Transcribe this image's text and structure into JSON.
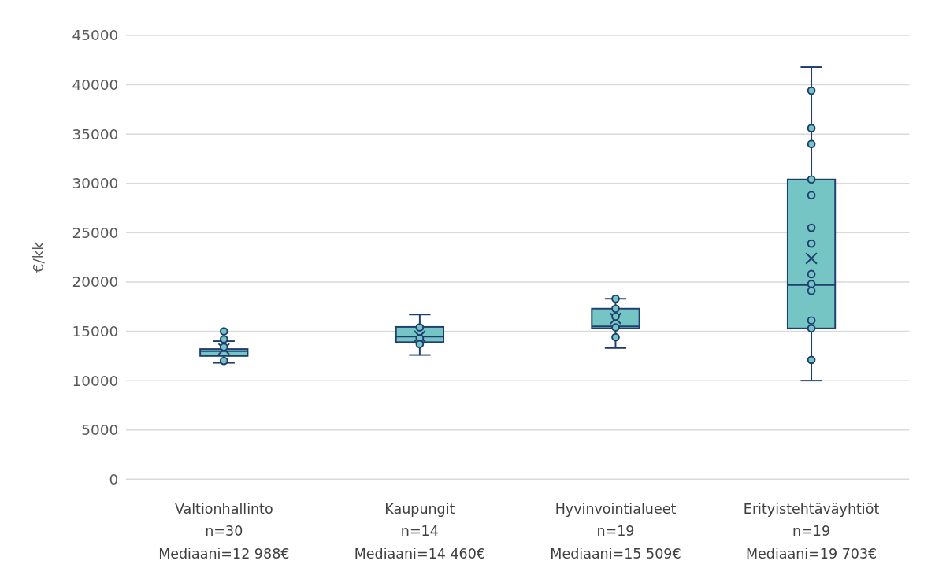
{
  "chart_data": {
    "type": "box",
    "ylabel": "€/kk",
    "categories": [
      "Valtionhallinto\nn=30\nMediaani=12 988€",
      "Kaupungit\nn=14\nMediaani=14 460€",
      "Hyvinvointialueet\nn=19\nMediaani=15 509€",
      "Erityistehtäväyhtiöt\nn=19\nMediaani=19 703€"
    ],
    "series": [
      {
        "color": "#76c5c5",
        "boxes": [
          {
            "low": 11800,
            "q1": 12500,
            "median": 12988,
            "q3": 13200,
            "high": 14000,
            "mean": 13200
          },
          {
            "low": 12600,
            "q1": 13900,
            "median": 14460,
            "q3": 15450,
            "high": 16700,
            "mean": 14500
          },
          {
            "low": 13300,
            "q1": 15300,
            "median": 15509,
            "q3": 17300,
            "high": 18300,
            "mean": 16300
          },
          {
            "low": 10000,
            "q1": 15300,
            "median": 19703,
            "q3": 30400,
            "high": 41800,
            "mean": 22400
          }
        ]
      },
      {
        "type": "scatter",
        "color": "#76c5c5",
        "marker": "circle",
        "x": [
          "Valtionhallinto\nn=30\nMediaani=12 988€",
          "Valtionhallinto\nn=30\nMediaani=12 988€",
          "Valtionhallinto\nn=30\nMediaani=12 988€",
          "Valtionhallinto\nn=30\nMediaani=12 988€",
          "Kaupungit\nn=14\nMediaani=14 460€",
          "Kaupungit\nn=14\nMediaani=14 460€",
          "Kaupungit\nn=14\nMediaani=14 460€",
          "Hyvinvointialueet\nn=19\nMediaani=15 509€",
          "Hyvinvointialueet\nn=19\nMediaani=15 509€",
          "Hyvinvointialueet\nn=19\nMediaani=15 509€",
          "Hyvinvointialueet\nn=19\nMediaani=15 509€",
          "Hyvinvointialueet\nn=19\nMediaani=15 509€",
          "Erityistehtäväyhtiöt\nn=19\nMediaani=19 703€",
          "Erityistehtäväyhtiöt\nn=19\nMediaani=19 703€",
          "Erityistehtäväyhtiöt\nn=19\nMediaani=19 703€",
          "Erityistehtäväyhtiöt\nn=19\nMediaani=19 703€",
          "Erityistehtäväyhtiöt\nn=19\nMediaani=19 703€",
          "Erityistehtäväyhtiöt\nn=19\nMediaani=19 703€",
          "Erityistehtäväyhtiöt\nn=19\nMediaani=19 703€",
          "Erityistehtäväyhtiöt\nn=19\nMediaani=19 703€",
          "Erityistehtäväyhtiöt\nn=19\nMediaani=19 703€",
          "Erityistehtäväyhtiöt\nn=19\nMediaani=19 703€",
          "Erityistehtäväyhtiöt\nn=19\nMediaani=19 703€",
          "Erityistehtäväyhtiöt\nn=19\nMediaani=19 703€",
          "Erityistehtäväyhtiöt\nn=19\nMediaani=19 703€"
        ],
        "values": [
          15000,
          14200,
          13400,
          12000,
          15400,
          14300,
          13700,
          18300,
          17300,
          16500,
          15400,
          14400,
          39400,
          35600,
          34000,
          30400,
          28800,
          25500,
          23900,
          20800,
          19800,
          19100,
          16100,
          15300,
          12100
        ]
      }
    ],
    "ylim": [
      0,
      45000
    ],
    "yticks": [
      0,
      5000,
      10000,
      15000,
      20000,
      25000,
      30000,
      35000,
      40000,
      45000
    ],
    "grid": "y"
  }
}
